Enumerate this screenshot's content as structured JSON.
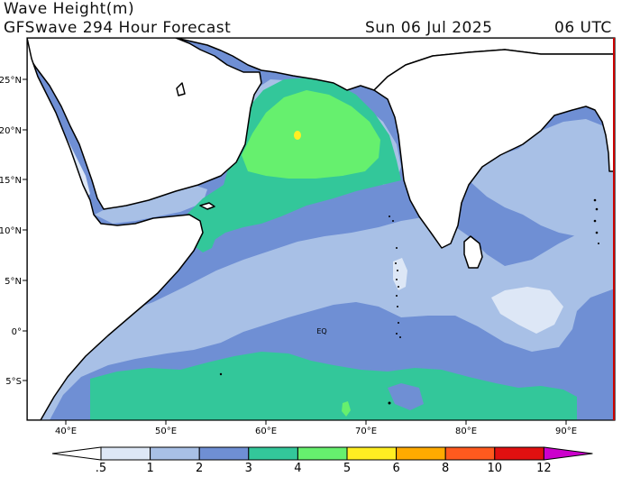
{
  "header": {
    "title": "Wave Height(m)",
    "subtitle": "GFSwave 294 Hour Forecast",
    "date": "Sun 06 Jul 2025",
    "time": "06 UTC"
  },
  "map": {
    "lat_labels": [
      "25°N",
      "20°N",
      "15°N",
      "10°N",
      "5°N",
      "0°",
      "5°S"
    ],
    "lon_labels": [
      "40°E",
      "50°E",
      "60°E",
      "70°E",
      "80°E",
      "90°E"
    ],
    "equator_label": "EQ",
    "colors": {
      "lt_05": "#ffffff",
      "c_05_1": "#dde7f6",
      "c_1_2": "#a8c0e6",
      "c_2_3": "#6f8fd4",
      "c_3_4": "#33c79a",
      "c_4_5": "#66f06e",
      "c_5_6": "#ffee22",
      "land": "#ffffff",
      "coast": "#000000"
    }
  },
  "legend": {
    "labels": [
      ".5",
      "1",
      "2",
      "3",
      "4",
      "5",
      "6",
      "8",
      "10",
      "12"
    ],
    "colors": [
      "#dde7f6",
      "#a8c0e6",
      "#6f8fd4",
      "#33c79a",
      "#66f06e",
      "#ffee22",
      "#ffaa00",
      "#ff5a1e",
      "#e01010",
      "#cc00cc"
    ]
  }
}
